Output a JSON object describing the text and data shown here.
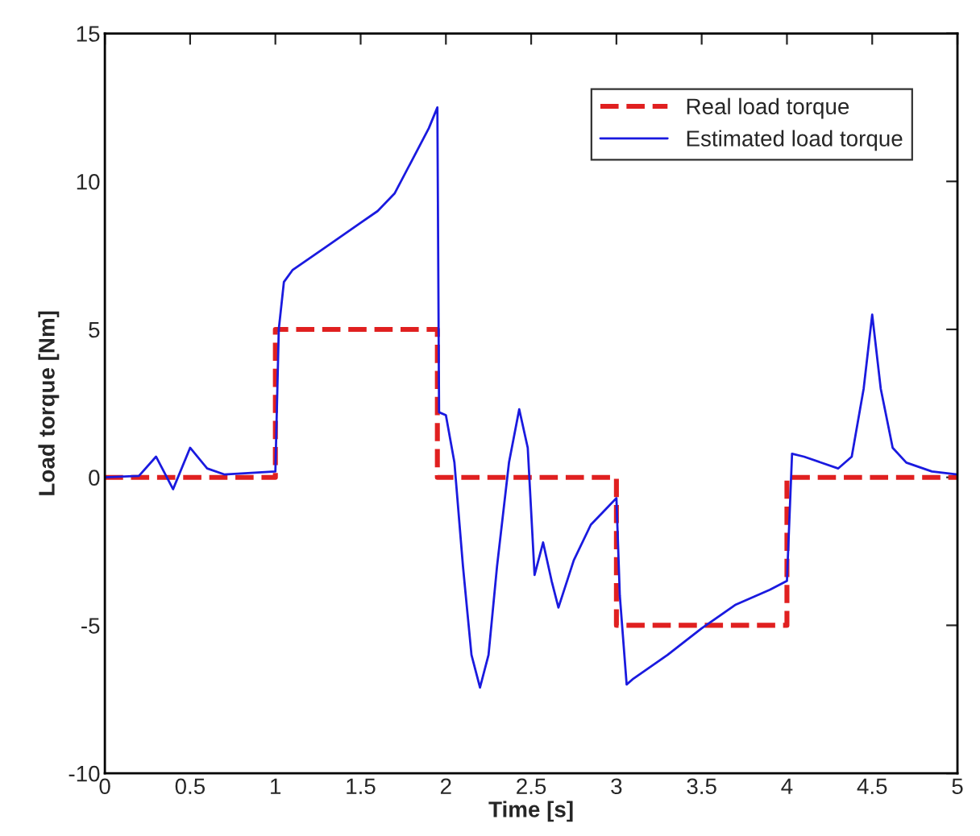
{
  "chart_data": {
    "type": "line",
    "xlabel": "Time [s]",
    "ylabel": "Load torque [Nm]",
    "xlim": [
      0,
      5
    ],
    "ylim": [
      -10,
      15
    ],
    "xticks": [
      0,
      0.5,
      1,
      1.5,
      2,
      2.5,
      3,
      3.5,
      4,
      4.5,
      5
    ],
    "yticks": [
      -10,
      -5,
      0,
      5,
      10,
      15
    ],
    "grid": false,
    "legend": "top right",
    "series": [
      {
        "name": "Real load torque",
        "color": "#e02020",
        "line_style": "dashed",
        "x": [
          0,
          1,
          1,
          1.95,
          1.95,
          3,
          3,
          4,
          4,
          5
        ],
        "values": [
          0,
          0,
          5,
          5,
          0,
          0,
          -5,
          -5,
          0,
          0
        ]
      },
      {
        "name": "Estimated load torque",
        "color": "#1a1adf",
        "line_style": "solid",
        "x": [
          0,
          0.2,
          0.3,
          0.4,
          0.5,
          0.6,
          0.7,
          1.0,
          1.02,
          1.05,
          1.1,
          1.3,
          1.5,
          1.6,
          1.7,
          1.8,
          1.9,
          1.95,
          1.96,
          2.0,
          2.05,
          2.1,
          2.15,
          2.2,
          2.25,
          2.3,
          2.37,
          2.43,
          2.48,
          2.52,
          2.57,
          2.62,
          2.66,
          2.75,
          2.85,
          2.95,
          3.0,
          3.02,
          3.06,
          3.1,
          3.3,
          3.5,
          3.7,
          3.9,
          4.0,
          4.03,
          4.1,
          4.3,
          4.38,
          4.45,
          4.5,
          4.55,
          4.62,
          4.7,
          4.85,
          5
        ],
        "values": [
          0,
          0.05,
          0.7,
          -0.4,
          1.0,
          0.3,
          0.1,
          0.2,
          5,
          6.6,
          7,
          7.8,
          8.6,
          9,
          9.6,
          10.7,
          11.8,
          12.5,
          2.2,
          2.1,
          0.5,
          -3,
          -6,
          -7.1,
          -6,
          -3,
          0.5,
          2.3,
          1,
          -3.3,
          -2.2,
          -3.5,
          -4.4,
          -2.8,
          -1.6,
          -1,
          -0.7,
          -4,
          -7,
          -6.8,
          -6,
          -5.1,
          -4.3,
          -3.8,
          -3.5,
          0.8,
          0.7,
          0.3,
          0.7,
          3,
          5.5,
          3,
          1,
          0.5,
          0.2,
          0.1
        ]
      }
    ]
  }
}
